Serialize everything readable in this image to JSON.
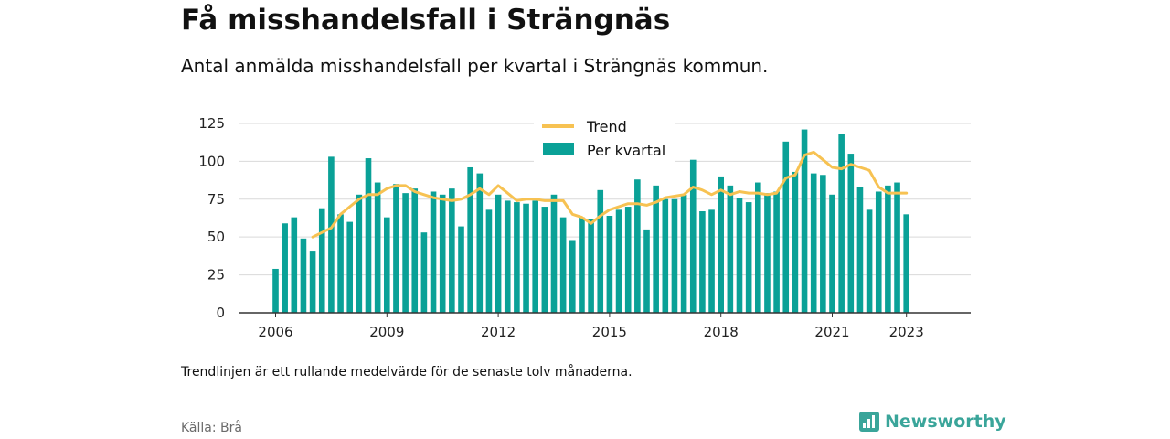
{
  "title": "Få misshandelsfall i Strängnäs",
  "subtitle": "Antal anmälda misshandelsfall per kvartal i Strängnäs kommun.",
  "note": "Trendlinjen är ett rullande medelvärde för de senaste tolv månaderna.",
  "source": "Källa: Brå",
  "brand": "Newsworthy",
  "colors": {
    "bar": "#0aa197",
    "trend": "#f7c252",
    "brand": "#3aa59a"
  },
  "chart_data": {
    "type": "bar",
    "series": [
      {
        "name": "Trend",
        "type": "line"
      },
      {
        "name": "Per kvartal",
        "type": "bar"
      }
    ],
    "x_start": "2006 Q1",
    "categories": [
      "2006 Q1",
      "2006 Q2",
      "2006 Q3",
      "2006 Q4",
      "2007 Q1",
      "2007 Q2",
      "2007 Q3",
      "2007 Q4",
      "2008 Q1",
      "2008 Q2",
      "2008 Q3",
      "2008 Q4",
      "2009 Q1",
      "2009 Q2",
      "2009 Q3",
      "2009 Q4",
      "2010 Q1",
      "2010 Q2",
      "2010 Q3",
      "2010 Q4",
      "2011 Q1",
      "2011 Q2",
      "2011 Q3",
      "2011 Q4",
      "2012 Q1",
      "2012 Q2",
      "2012 Q3",
      "2012 Q4",
      "2013 Q1",
      "2013 Q2",
      "2013 Q3",
      "2013 Q4",
      "2014 Q1",
      "2014 Q2",
      "2014 Q3",
      "2014 Q4",
      "2015 Q1",
      "2015 Q2",
      "2015 Q3",
      "2015 Q4",
      "2016 Q1",
      "2016 Q2",
      "2016 Q3",
      "2016 Q4",
      "2017 Q1",
      "2017 Q2",
      "2017 Q3",
      "2017 Q4",
      "2018 Q1",
      "2018 Q2",
      "2018 Q3",
      "2018 Q4",
      "2019 Q1",
      "2019 Q2",
      "2019 Q3",
      "2019 Q4",
      "2020 Q1",
      "2020 Q2",
      "2020 Q3",
      "2020 Q4",
      "2021 Q1",
      "2021 Q2",
      "2021 Q3",
      "2021 Q4",
      "2022 Q1",
      "2022 Q2",
      "2022 Q3",
      "2022 Q4",
      "2023 Q1"
    ],
    "per_kvartal": [
      29,
      59,
      63,
      49,
      41,
      69,
      103,
      65,
      60,
      78,
      102,
      86,
      63,
      85,
      79,
      82,
      53,
      80,
      78,
      82,
      57,
      96,
      92,
      68,
      78,
      74,
      73,
      72,
      74,
      70,
      78,
      63,
      48,
      63,
      62,
      81,
      64,
      68,
      70,
      88,
      55,
      84,
      75,
      75,
      78,
      101,
      67,
      68,
      90,
      84,
      76,
      73,
      86,
      79,
      80,
      113,
      93,
      121,
      92,
      91,
      78,
      118,
      105,
      83,
      68,
      80,
      84,
      86,
      65
    ],
    "trend": [
      null,
      null,
      null,
      null,
      50,
      53,
      56,
      65,
      70,
      75,
      78,
      78,
      82,
      84,
      84,
      80,
      78,
      76,
      75,
      74,
      75,
      78,
      82,
      78,
      84,
      79,
      74,
      75,
      75,
      74,
      74,
      74,
      65,
      63,
      59,
      64,
      68,
      70,
      72,
      72,
      71,
      73,
      76,
      77,
      78,
      83,
      81,
      78,
      81,
      78,
      80,
      79,
      79,
      78,
      79,
      89,
      91,
      104,
      106,
      101,
      96,
      95,
      98,
      96,
      94,
      83,
      79,
      79,
      79
    ],
    "x_ticks": [
      "2006",
      "2009",
      "2012",
      "2015",
      "2018",
      "2021",
      "2023"
    ],
    "y_ticks": [
      0,
      25,
      50,
      75,
      100,
      125
    ],
    "ylim": [
      0,
      131
    ],
    "grid": true,
    "legend_position": "top-center"
  }
}
